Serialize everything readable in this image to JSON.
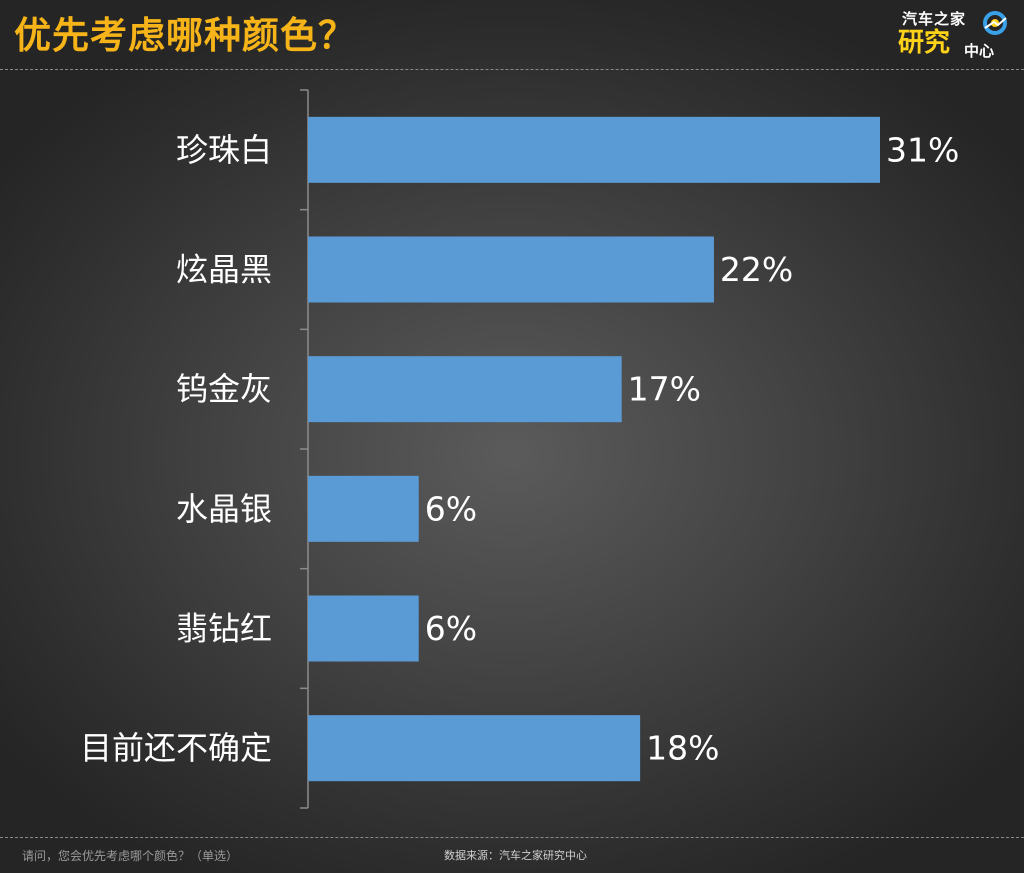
{
  "header": {
    "title": "优先考虑哪种颜色？"
  },
  "logo": {
    "line1": "汽车之家",
    "line2": "研究",
    "line3": "中心"
  },
  "chart_data": {
    "type": "bar",
    "orientation": "horizontal",
    "categories": [
      "珍珠白",
      "炫晶黑",
      "钨金灰",
      "水晶银",
      "翡钻红",
      "目前还不确定"
    ],
    "values": [
      31,
      22,
      17,
      6,
      6,
      18
    ],
    "value_labels": [
      "31%",
      "22%",
      "17%",
      "6%",
      "6%",
      "18%"
    ],
    "unit": "%",
    "xlim": [
      0,
      31
    ],
    "bar_color": "#5b9bd5",
    "grid": false,
    "legend": "none"
  },
  "footer": {
    "note": "请问，您会优先考虑哪个颜色？（单选）",
    "source": "数据来源：汽车之家研究中心"
  }
}
